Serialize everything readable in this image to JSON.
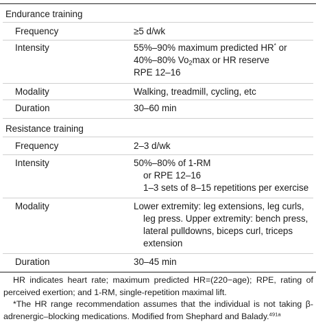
{
  "endurance": {
    "title": "Endurance training",
    "frequency": {
      "label": "Frequency",
      "value": "≥5 d/wk"
    },
    "intensity": {
      "label": "Intensity",
      "line1_pre": "55%–90% maximum predicted HR",
      "line1_sup": "*",
      "line1_post": " or",
      "line2_pre": "40%–80% Vo",
      "line2_sub": "2",
      "line2_post": "max or HR reserve",
      "line3": "RPE 12–16"
    },
    "modality": {
      "label": "Modality",
      "value": "Walking, treadmill, cycling, etc"
    },
    "duration": {
      "label": "Duration",
      "value": "30–60 min"
    }
  },
  "resistance": {
    "title": "Resistance training",
    "frequency": {
      "label": "Frequency",
      "value": "2–3 d/wk"
    },
    "intensity": {
      "label": "Intensity",
      "lines": [
        "50%–80% of 1-RM",
        "or RPE 12–16",
        "1–3 sets of 8–15 repetitions per exercise"
      ]
    },
    "modality": {
      "label": "Modality",
      "lines": [
        "Lower extremity: leg extensions, leg curls,",
        "leg press. Upper extremity: bench press,",
        "lateral pulldowns, biceps curl, triceps",
        "extension"
      ]
    },
    "duration": {
      "label": "Duration",
      "value": "30–45 min"
    }
  },
  "footnotes": {
    "note1": "HR indicates heart rate; maximum predicted HR=(220−age); RPE, rating of perceived exertion; and 1-RM, single-repetition maximal lift.",
    "note2": "*The HR range recommendation assumes that the individual is not taking β-adrenergic–blocking medications. Modified from Shephard and Balady.",
    "note2_ref": "491a"
  }
}
